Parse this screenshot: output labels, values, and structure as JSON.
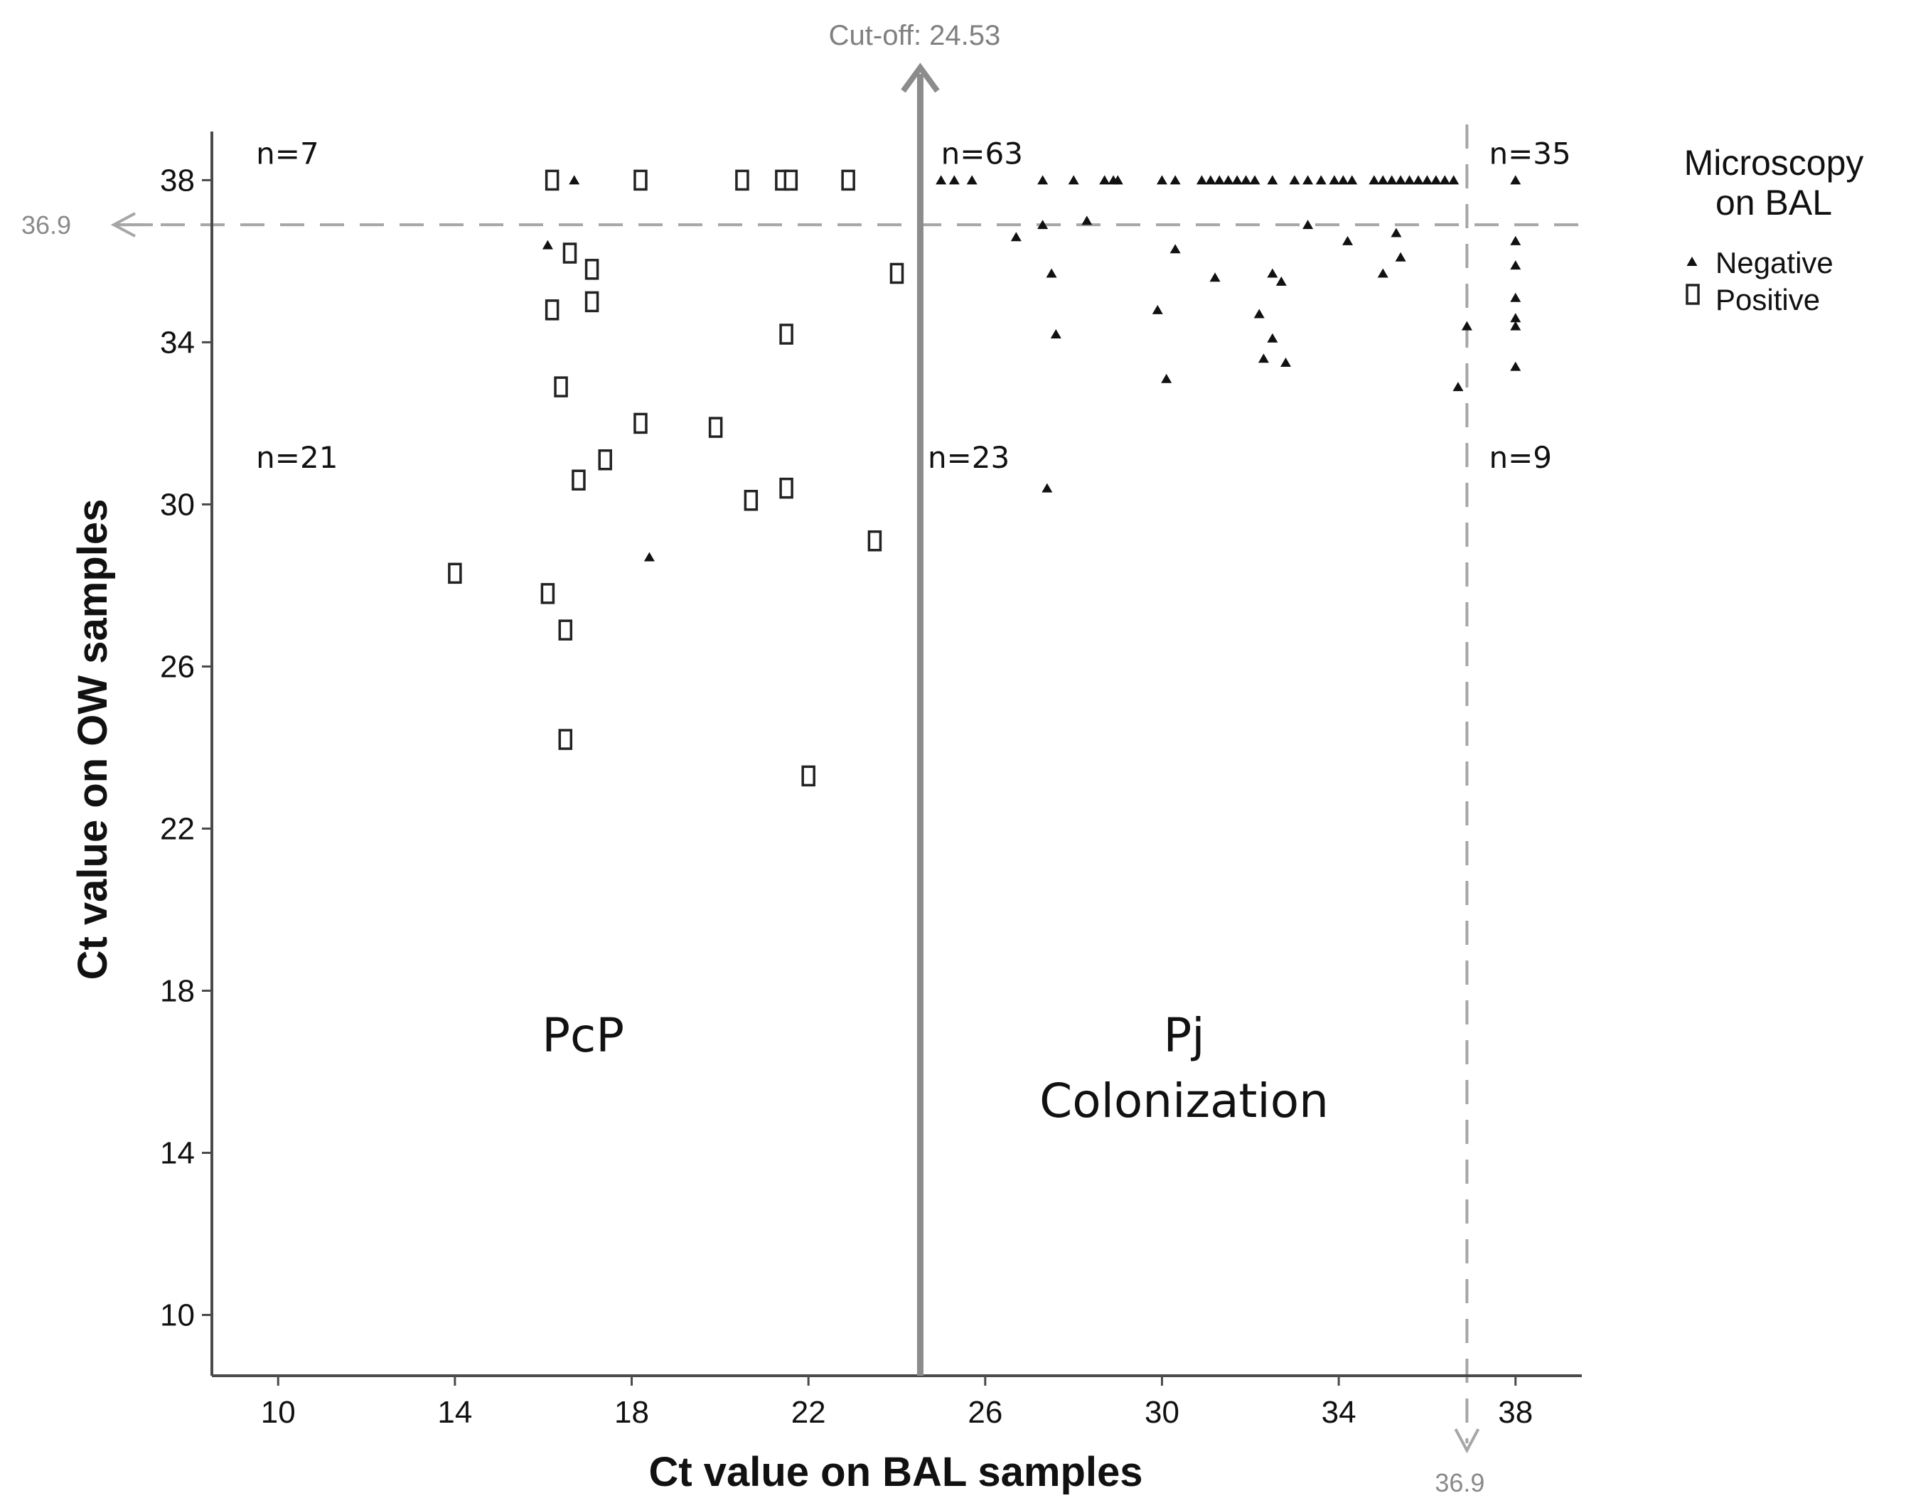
{
  "chart_data": {
    "type": "scatter",
    "xlabel": "Ct value on BAL samples",
    "ylabel": "Ct value on OW samples",
    "xlim": [
      8.5,
      39.5
    ],
    "ylim": [
      8.5,
      39.2
    ],
    "x_ticks": [
      10,
      14,
      18,
      22,
      26,
      30,
      34,
      38
    ],
    "y_ticks": [
      10,
      14,
      18,
      22,
      26,
      30,
      34,
      38
    ],
    "cutoff": {
      "value": 24.53,
      "label": "Cut-off: 24.53"
    },
    "threshold": {
      "value": 36.9,
      "x_label": "36.9",
      "y_label": "36.9"
    },
    "legend": {
      "title_line1": "Microscopy",
      "title_line2": "on BAL",
      "position": "top-right",
      "entries": [
        {
          "label": "Negative",
          "marker": "triangle"
        },
        {
          "label": "Positive",
          "marker": "open-square"
        }
      ]
    },
    "counts": [
      {
        "text": "n=7",
        "x": 9.5,
        "y": 38.4
      },
      {
        "text": "n=63",
        "x": 25.0,
        "y": 38.4
      },
      {
        "text": "n=35",
        "x": 37.4,
        "y": 38.4
      },
      {
        "text": "n=21",
        "x": 9.5,
        "y": 30.9
      },
      {
        "text": "n=23",
        "x": 24.7,
        "y": 30.9
      },
      {
        "text": "n=9",
        "x": 37.4,
        "y": 30.9
      }
    ],
    "regions": [
      {
        "lines": [
          "PcP"
        ],
        "x": 16.9,
        "y": 16.5
      },
      {
        "lines": [
          "Pj",
          "Colonization"
        ],
        "x": 30.5,
        "y": 16.5
      }
    ],
    "series": [
      {
        "name": "Positive",
        "marker": "open-square",
        "points": [
          [
            16.2,
            38.0
          ],
          [
            18.2,
            38.0
          ],
          [
            20.5,
            38.0
          ],
          [
            21.4,
            38.0
          ],
          [
            21.6,
            38.0
          ],
          [
            22.9,
            38.0
          ],
          [
            16.6,
            36.2
          ],
          [
            17.1,
            35.8
          ],
          [
            17.1,
            35.0
          ],
          [
            16.2,
            34.8
          ],
          [
            21.5,
            34.2
          ],
          [
            24.0,
            35.7
          ],
          [
            16.4,
            32.9
          ],
          [
            18.2,
            32.0
          ],
          [
            19.9,
            31.9
          ],
          [
            17.4,
            31.1
          ],
          [
            16.8,
            30.6
          ],
          [
            21.5,
            30.4
          ],
          [
            20.7,
            30.1
          ],
          [
            23.5,
            29.1
          ],
          [
            14.0,
            28.3
          ],
          [
            16.1,
            27.8
          ],
          [
            16.5,
            26.9
          ],
          [
            16.5,
            24.2
          ],
          [
            22.0,
            23.3
          ]
        ]
      },
      {
        "name": "Negative",
        "marker": "triangle",
        "points": [
          [
            16.7,
            38.0
          ],
          [
            25.0,
            38.0
          ],
          [
            25.3,
            38.0
          ],
          [
            25.7,
            38.0
          ],
          [
            27.3,
            38.0
          ],
          [
            28.0,
            38.0
          ],
          [
            28.7,
            38.0
          ],
          [
            28.9,
            38.0
          ],
          [
            29.0,
            38.0
          ],
          [
            30.0,
            38.0
          ],
          [
            30.3,
            38.0
          ],
          [
            30.9,
            38.0
          ],
          [
            31.1,
            38.0
          ],
          [
            31.3,
            38.0
          ],
          [
            31.5,
            38.0
          ],
          [
            31.7,
            38.0
          ],
          [
            31.9,
            38.0
          ],
          [
            32.1,
            38.0
          ],
          [
            32.5,
            38.0
          ],
          [
            33.0,
            38.0
          ],
          [
            33.3,
            38.0
          ],
          [
            33.6,
            38.0
          ],
          [
            33.9,
            38.0
          ],
          [
            34.1,
            38.0
          ],
          [
            34.3,
            38.0
          ],
          [
            34.8,
            38.0
          ],
          [
            35.0,
            38.0
          ],
          [
            35.2,
            38.0
          ],
          [
            35.4,
            38.0
          ],
          [
            35.6,
            38.0
          ],
          [
            35.8,
            38.0
          ],
          [
            36.0,
            38.0
          ],
          [
            36.2,
            38.0
          ],
          [
            36.4,
            38.0
          ],
          [
            36.6,
            38.0
          ],
          [
            38.0,
            38.0
          ],
          [
            16.1,
            36.4
          ],
          [
            18.4,
            28.7
          ],
          [
            26.7,
            36.6
          ],
          [
            27.3,
            36.9
          ],
          [
            28.3,
            37.0
          ],
          [
            27.5,
            35.7
          ],
          [
            27.6,
            34.2
          ],
          [
            30.3,
            36.3
          ],
          [
            29.9,
            34.8
          ],
          [
            30.1,
            33.1
          ],
          [
            31.2,
            35.6
          ],
          [
            32.2,
            34.7
          ],
          [
            32.5,
            35.7
          ],
          [
            32.7,
            35.5
          ],
          [
            32.5,
            34.1
          ],
          [
            32.3,
            33.6
          ],
          [
            32.8,
            33.5
          ],
          [
            33.3,
            36.9
          ],
          [
            34.2,
            36.5
          ],
          [
            35.0,
            35.7
          ],
          [
            35.3,
            36.7
          ],
          [
            35.4,
            36.1
          ],
          [
            36.9,
            34.4
          ],
          [
            36.7,
            32.9
          ],
          [
            27.4,
            30.4
          ],
          [
            38.0,
            36.5
          ],
          [
            38.0,
            35.9
          ],
          [
            38.0,
            35.1
          ],
          [
            38.0,
            34.6
          ],
          [
            38.0,
            34.4
          ],
          [
            38.0,
            33.4
          ]
        ]
      }
    ]
  }
}
